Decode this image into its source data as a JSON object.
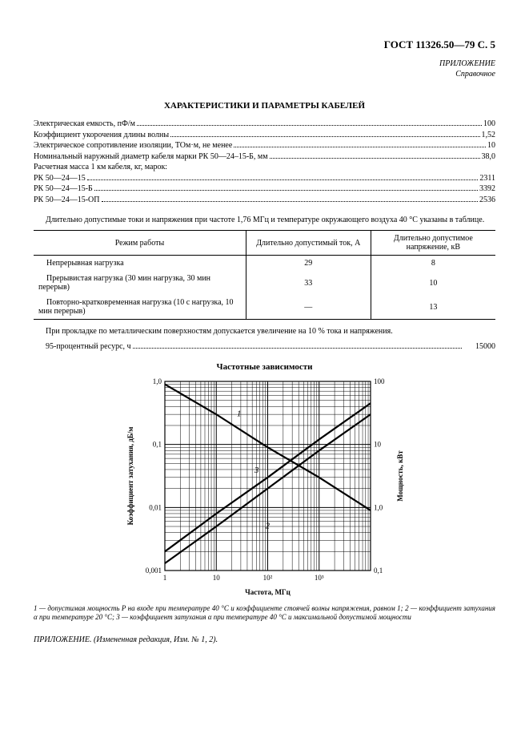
{
  "header": {
    "doc_ref": "ГОСТ 11326.50—79 С. 5",
    "appendix": "ПРИЛОЖЕНИЕ",
    "appendix_type": "Справочное"
  },
  "title": "ХАРАКТЕРИСТИКИ И ПАРАМЕТРЫ КАБЕЛЕЙ",
  "specs": [
    {
      "label": "Электрическая емкость, пФ/м",
      "value": "100"
    },
    {
      "label": "Коэффициент укорочения длины волны",
      "value": "1,52"
    },
    {
      "label": "Электрическое сопротивление изоляции, ТОм·м, не менее",
      "value": "10"
    },
    {
      "label": "Номинальный наружный диаметр кабеля марки РК 50—24–15-Б, мм",
      "value": "38,0"
    },
    {
      "label": "Расчетная масса 1 км кабеля, кг, марок:",
      "value": ""
    },
    {
      "label": "РК 50—24—15",
      "value": "2311"
    },
    {
      "label": "РК 50—24—15-Б",
      "value": "3392"
    },
    {
      "label": "РК 50—24—15-ОП",
      "value": "2536"
    }
  ],
  "intro_para": "Длительно допустимые токи и напряжения при частоте 1,76 МГц и температуре окружающего воздуха 40 °С указаны в таблице.",
  "table": {
    "head": {
      "c1": "Режим работы",
      "c2": "Длительно допустимый ток, А",
      "c3": "Длительно допустимое напряжение, кВ"
    },
    "rows": [
      {
        "mode": "Непрерывная нагрузка",
        "i": "29",
        "v": "8"
      },
      {
        "mode": "Прерывистая нагрузка (30 мин нагрузка, 30 мин перерыв)",
        "i": "33",
        "v": "10"
      },
      {
        "mode": "Повторно-кратковременная нагрузка (10 с нагрузка, 10 мин перерыв)",
        "i": "—",
        "v": "13"
      }
    ]
  },
  "after_table_para": "При прокладке по металлическим поверхностям допускается увеличение на 10 % тока и напряжения.",
  "resource": {
    "label": "95-процентный ресурс, ч",
    "value": "15000"
  },
  "chart": {
    "title": "Частотные зависимости",
    "xlabel": "Частота, МГц",
    "ylabel_left": "Коэффициент затухания, дБ/м",
    "ylabel_right": "Мощность, кВт",
    "x": {
      "min": 1,
      "max": 10000,
      "ticks": [
        "1",
        "10",
        "10²",
        "10³"
      ]
    },
    "y_left": {
      "min": 0.001,
      "max": 1.0,
      "ticks": [
        "0,001",
        "0,01",
        "0,1",
        "1,0"
      ]
    },
    "y_right": {
      "min": 0.1,
      "max": 100,
      "ticks": [
        "0,1",
        "1,0",
        "10",
        "100"
      ]
    },
    "colors": {
      "axis": "#000000",
      "grid": "#000000",
      "bg": "#ffffff",
      "series": "#000000"
    },
    "font": {
      "axis_label_pt": 9,
      "tick_pt": 9
    },
    "series_labels": {
      "s1": "1",
      "s2": "2",
      "s3": "3"
    },
    "series": [
      {
        "id": "1",
        "type": "line-desc",
        "xy": [
          [
            1,
            90
          ],
          [
            10,
            30
          ],
          [
            100,
            9
          ],
          [
            1000,
            3
          ],
          [
            10000,
            0.9
          ]
        ],
        "axis": "right",
        "width": 2.2
      },
      {
        "id": "2",
        "type": "line-asc",
        "xy": [
          [
            1,
            0.0013
          ],
          [
            10,
            0.005
          ],
          [
            100,
            0.02
          ],
          [
            1000,
            0.08
          ],
          [
            10000,
            0.3
          ]
        ],
        "axis": "left",
        "width": 2.2
      },
      {
        "id": "3",
        "type": "line-asc",
        "xy": [
          [
            1,
            0.002
          ],
          [
            10,
            0.008
          ],
          [
            100,
            0.03
          ],
          [
            1000,
            0.12
          ],
          [
            10000,
            0.45
          ]
        ],
        "axis": "left",
        "width": 2.2
      }
    ]
  },
  "legend": "1 — допустимая мощность P на входе при температуре 40 °С и коэффициенте стоячей волны напряжения, равном 1; 2 — коэффициент затухания α при температуре 20 °С; 3 — коэффициент затухания α при температуре 40 °С и максимальной допустимой мощности",
  "footer": "ПРИЛОЖЕНИЕ. (Измененная редакция, Изм. № 1, 2)."
}
